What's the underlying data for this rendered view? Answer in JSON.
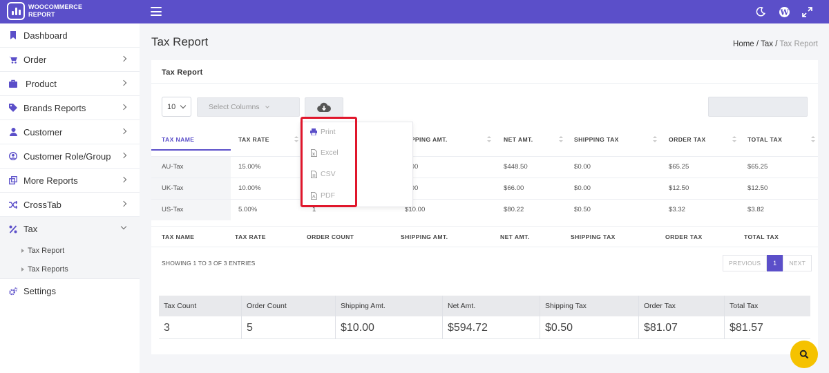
{
  "app": {
    "brand_line1": "WOOCOMMERCE",
    "brand_line2": "REPORT"
  },
  "topbar": {
    "icons": [
      "menu-icon",
      "moon-icon",
      "wordpress-icon",
      "fullscreen-icon"
    ]
  },
  "sidebar": {
    "items": [
      {
        "label": "Dashboard",
        "icon": "bookmark-icon"
      },
      {
        "label": "Order",
        "icon": "cart-icon"
      },
      {
        "label": "Product",
        "icon": "bag-icon"
      },
      {
        "label": "Brands Reports",
        "icon": "tag-icon"
      },
      {
        "label": "Customer",
        "icon": "user-icon"
      },
      {
        "label": "Customer Role/Group",
        "icon": "user-circle-icon"
      },
      {
        "label": "More Reports",
        "icon": "clone-icon"
      },
      {
        "label": "CrossTab",
        "icon": "shuffle-icon"
      },
      {
        "label": "Tax",
        "icon": "percent-icon"
      },
      {
        "label": "Settings",
        "icon": "gears-icon"
      }
    ],
    "tax_sub": [
      "Tax Report",
      "Tax Reports"
    ]
  },
  "page": {
    "title": "Tax Report",
    "breadcrumb": {
      "home": "Home",
      "sep1": " / ",
      "mid": "Tax",
      "sep2": " / ",
      "current": "Tax Report"
    }
  },
  "card": {
    "title": "Tax Report",
    "length_value": "10",
    "columns_placeholder": "Select Columns"
  },
  "table": {
    "headers": [
      "TAX NAME",
      "TAX RATE",
      "ORDER COUNT",
      "SHIPPING AMT.",
      "NET AMT.",
      "SHIPPING TAX",
      "ORDER TAX",
      "TOTAL TAX"
    ],
    "header_visible": {
      "shipping": "IPPING AMT."
    },
    "rows": [
      {
        "name": "AU-Tax",
        "rate": "15.00%",
        "shipping": ".00",
        "net": "$448.50",
        "shipping_tax": "$0.00",
        "order_tax": "$65.25",
        "total_tax": "$65.25"
      },
      {
        "name": "UK-Tax",
        "rate": "10.00%",
        "shipping": ".00",
        "net": "$66.00",
        "shipping_tax": "$0.00",
        "order_tax": "$12.50",
        "total_tax": "$12.50"
      },
      {
        "name": "US-Tax",
        "rate": "5.00%",
        "count_partial": "1",
        "shipping": "$10.00",
        "net": "$80.22",
        "shipping_tax": "$0.50",
        "order_tax": "$3.32",
        "total_tax": "$3.82"
      }
    ],
    "info": "SHOWING 1 TO 3 OF 3 ENTRIES",
    "pager": {
      "prev": "PREVIOUS",
      "page": "1",
      "next": "NEXT"
    }
  },
  "export_menu": [
    "Print",
    "Excel",
    "CSV",
    "PDF"
  ],
  "summary": {
    "headers": [
      "Tax Count",
      "Order Count",
      "Shipping Amt.",
      "Net Amt.",
      "Shipping Tax",
      "Order Tax",
      "Total Tax"
    ],
    "values": [
      "3",
      "5",
      "$10.00",
      "$594.72",
      "$0.50",
      "$81.07",
      "$81.57"
    ]
  },
  "colors": {
    "accent": "#5b4fc9",
    "highlight": "#e0162b",
    "fab": "#f5c200"
  }
}
